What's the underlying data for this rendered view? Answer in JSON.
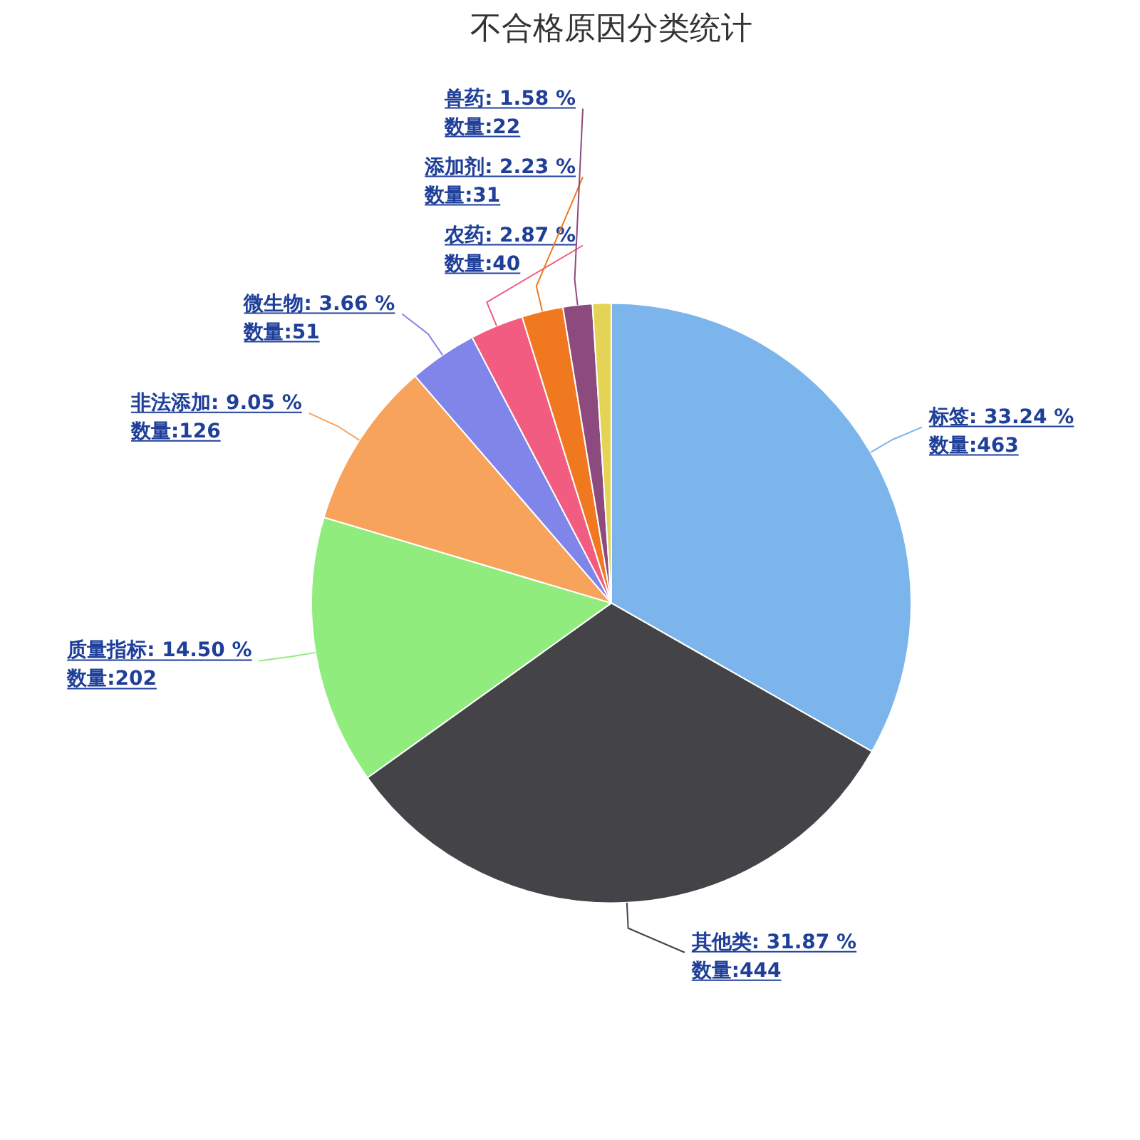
{
  "chart_data": {
    "type": "pie",
    "title": "不合格原因分类统计",
    "categories": [
      "标签",
      "其他类",
      "质量指标",
      "非法添加",
      "微生物",
      "农药",
      "添加剂",
      "兽药",
      null
    ],
    "values": [
      463,
      444,
      202,
      126,
      51,
      40,
      31,
      22,
      14
    ],
    "value_labels": [
      "33.24 %\n数量:463",
      "31.87 %\n数量:444",
      "14.50 %\n数量:202",
      "9.05 %\n数量:126",
      "3.66 %\n数量:51",
      "2.87 %\n数量:40",
      "2.23 %\n数量:31",
      "1.58 %\n数量:22",
      null
    ],
    "colors": [
      "#7cb5ec",
      "#434348",
      "#90ed7d",
      "#f7a35c",
      "#8085e9",
      "#f15c80",
      "#f0781e",
      "#8d4a7e",
      "#e4d354"
    ],
    "legend": false
  }
}
